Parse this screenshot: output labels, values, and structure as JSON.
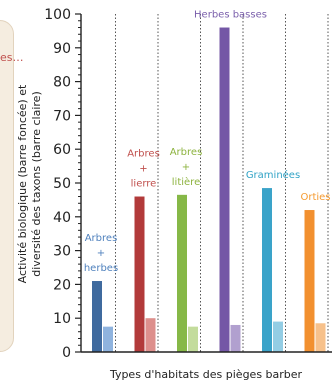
{
  "partial_left_text": "es…",
  "chart_data": {
    "type": "bar",
    "title": "",
    "xlabel": "Types d'habitats des pièges barber",
    "ylabel_lines": [
      "Activité biologique (barre foncée) et",
      "diversité des taxons (barre claire)"
    ],
    "ylim": [
      0,
      100
    ],
    "yticks": [
      0,
      10,
      20,
      30,
      40,
      50,
      60,
      70,
      80,
      90,
      100
    ],
    "grid": "vertical",
    "categories": [
      {
        "label_lines": [
          "Arbres",
          "+",
          "herbes"
        ],
        "dark": 21,
        "light": 7.5,
        "dark_color": "#3f6a9e",
        "light_color": "#8fb3de",
        "label_color": "#4f81bd"
      },
      {
        "label_lines": [
          "Arbres",
          "+",
          "lierre"
        ],
        "dark": 46,
        "light": 10,
        "dark_color": "#b23a3a",
        "light_color": "#dd8f8c",
        "label_color": "#c0504d"
      },
      {
        "label_lines": [
          "Arbres",
          "+",
          "litière"
        ],
        "dark": 46.5,
        "light": 7.5,
        "dark_color": "#86b847",
        "light_color": "#c3dc9c",
        "label_color": "#8db33f"
      },
      {
        "label_lines": [
          "Herbes basses"
        ],
        "dark": 96,
        "light": 8,
        "dark_color": "#7457a6",
        "light_color": "#b1a0cf",
        "label_color": "#7a5fab"
      },
      {
        "label_lines": [
          "Graminées"
        ],
        "dark": 48.5,
        "light": 9,
        "dark_color": "#3aa3c9",
        "light_color": "#93cde4",
        "label_color": "#31a3c6"
      },
      {
        "label_lines": [
          "Orties"
        ],
        "dark": 42,
        "light": 8.5,
        "dark_color": "#f2902f",
        "light_color": "#f7c18b",
        "label_color": "#f59a2e"
      }
    ]
  }
}
